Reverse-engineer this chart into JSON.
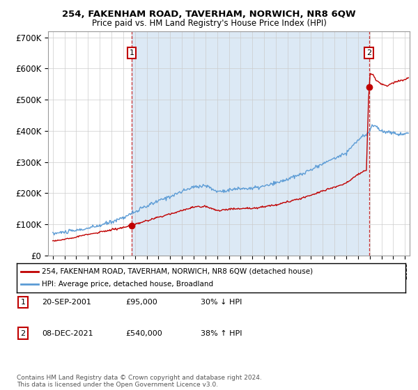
{
  "title": "254, FAKENHAM ROAD, TAVERHAM, NORWICH, NR8 6QW",
  "subtitle": "Price paid vs. HM Land Registry's House Price Index (HPI)",
  "legend_line1": "254, FAKENHAM ROAD, TAVERHAM, NORWICH, NR8 6QW (detached house)",
  "legend_line2": "HPI: Average price, detached house, Broadland",
  "transaction1_label": "1",
  "transaction1_date": "20-SEP-2001",
  "transaction1_price": "£95,000",
  "transaction1_hpi": "30% ↓ HPI",
  "transaction2_label": "2",
  "transaction2_date": "08-DEC-2021",
  "transaction2_price": "£540,000",
  "transaction2_hpi": "38% ↑ HPI",
  "footer": "Contains HM Land Registry data © Crown copyright and database right 2024.\nThis data is licensed under the Open Government Licence v3.0.",
  "hpi_color": "#5b9bd5",
  "price_color": "#c00000",
  "shade_color": "#dce9f5",
  "ylim": [
    0,
    720000
  ],
  "yticks": [
    0,
    100000,
    200000,
    300000,
    400000,
    500000,
    600000,
    700000
  ],
  "ytick_labels": [
    "£0",
    "£100K",
    "£200K",
    "£300K",
    "£400K",
    "£500K",
    "£600K",
    "£700K"
  ],
  "transaction1_x": 2001.72,
  "transaction1_y": 95000,
  "transaction2_x": 2021.93,
  "transaction2_y": 540000,
  "xlim_left": 1994.6,
  "xlim_right": 2025.4
}
